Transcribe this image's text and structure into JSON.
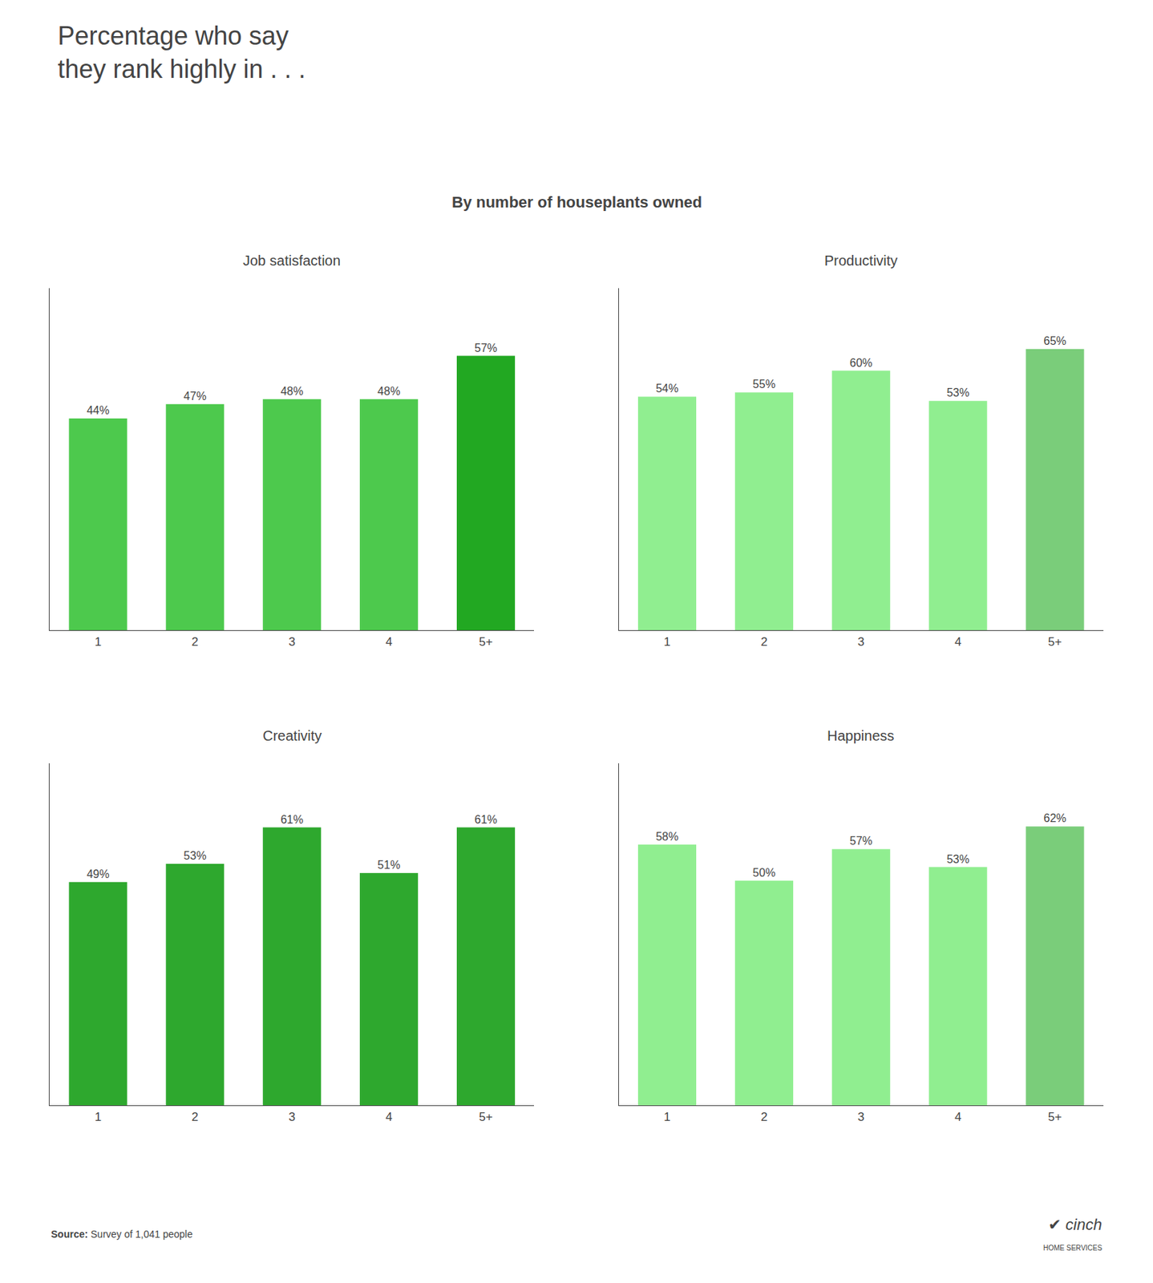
{
  "title": "Percentage who say\nthey rank highly in . . .",
  "subtitle": "By number of houseplants owned",
  "annotations": [
    "Source:",
    "Survey of 1,041 people",
    "✔",
    "cinch",
    "HOME SERVICES"
  ],
  "chart_data": [
    {
      "type": "bar",
      "title": "Job satisfaction",
      "categories": [
        "1",
        "2",
        "3",
        "4",
        "5+"
      ],
      "values": [
        44,
        47,
        48,
        48,
        57
      ],
      "value_labels": [
        "44%",
        "47%",
        "48%",
        "48%",
        "57%"
      ],
      "colors": [
        "#4dc94d",
        "#4dc94d",
        "#4dc94d",
        "#4dc94d",
        "#22a822"
      ],
      "ylim": [
        0,
        71
      ],
      "data_labels": true,
      "tick_labels": "x",
      "grid": false
    },
    {
      "type": "bar",
      "title": "Productivity",
      "categories": [
        "1",
        "2",
        "3",
        "4",
        "5+"
      ],
      "values": [
        54,
        55,
        60,
        53,
        65
      ],
      "value_labels": [
        "54%",
        "55%",
        "60%",
        "53%",
        "65%"
      ],
      "colors": [
        "#90ee90",
        "#90ee90",
        "#90ee90",
        "#90ee90",
        "#7acd7a"
      ],
      "ylim": [
        0,
        79
      ],
      "data_labels": true,
      "tick_labels": "x",
      "grid": false
    },
    {
      "type": "bar",
      "title": "Creativity",
      "categories": [
        "1",
        "2",
        "3",
        "4",
        "5+"
      ],
      "values": [
        49,
        53,
        61,
        51,
        61
      ],
      "value_labels": [
        "49%",
        "53%",
        "61%",
        "51%",
        "61%"
      ],
      "colors": [
        "#2ea82e",
        "#2ea82e",
        "#2ea82e",
        "#2ea82e",
        "#2ea82e"
      ],
      "ylim": [
        0,
        75
      ],
      "data_labels": true,
      "tick_labels": "x",
      "grid": false
    },
    {
      "type": "bar",
      "title": "Happiness",
      "categories": [
        "1",
        "2",
        "3",
        "4",
        "5+"
      ],
      "values": [
        58,
        50,
        57,
        53,
        62
      ],
      "value_labels": [
        "58%",
        "50%",
        "57%",
        "53%",
        "62%"
      ],
      "colors": [
        "#90ee90",
        "#90ee90",
        "#90ee90",
        "#90ee90",
        "#7acd7a"
      ],
      "ylim": [
        0,
        76
      ],
      "data_labels": true,
      "tick_labels": "x",
      "grid": false
    }
  ]
}
